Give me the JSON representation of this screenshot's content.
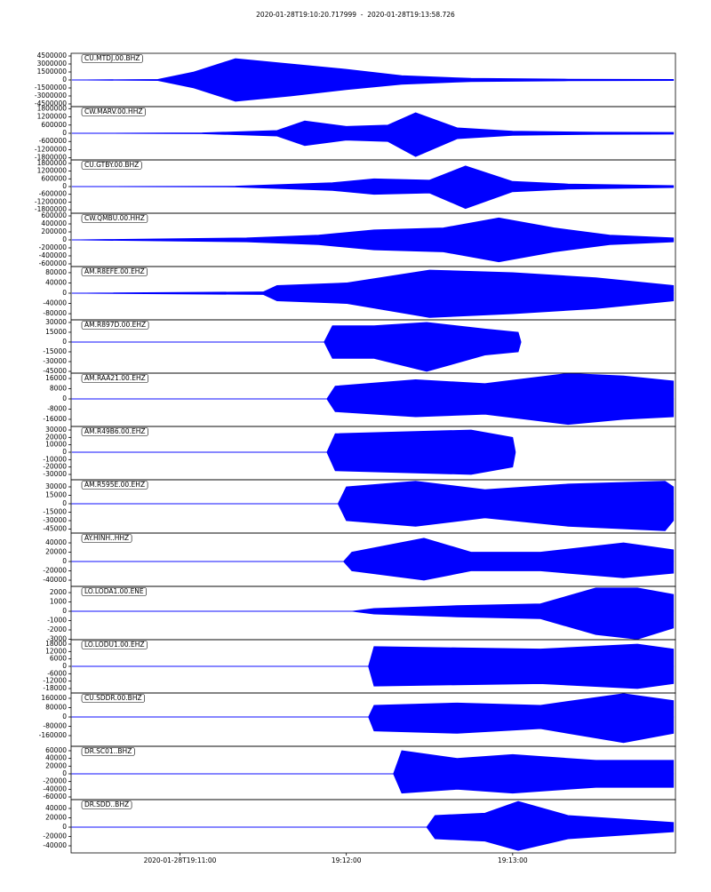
{
  "title": "2020-01-28T19:10:20.717999  -  2020-01-28T19:13:58.726",
  "chart_data": [
    {
      "type": "area",
      "title": "CU.MTDJ.00.BHZ",
      "xlim": [
        "2020-01-28T19:10:20.717999",
        "2020-01-28T19:13:58.726"
      ],
      "ylim": [
        -5000000,
        5000000
      ],
      "yticks": [
        4500000,
        3000000,
        1500000,
        0,
        -1500000,
        -3000000,
        -4500000
      ],
      "x": [
        "2020-01-28T19:10:21",
        "2020-01-28T19:10:52",
        "2020-01-28T19:11:05",
        "2020-01-28T19:11:20",
        "2020-01-28T19:11:40",
        "2020-01-28T19:12:00",
        "2020-01-28T19:12:20",
        "2020-01-28T19:12:45",
        "2020-01-28T19:13:20",
        "2020-01-28T19:13:58"
      ],
      "series": [
        {
          "color": "#0000ff",
          "values": [
            0,
            100000,
            1500000,
            4000000,
            3000000,
            2000000,
            800000,
            300000,
            150000,
            100000
          ]
        },
        {
          "color": "#0000ff",
          "values": [
            0,
            -100000,
            -1500000,
            -4000000,
            -3000000,
            -1800000,
            -800000,
            -300000,
            -150000,
            -100000
          ]
        }
      ]
    },
    {
      "type": "area",
      "title": "CW.MARV.00.HHZ",
      "xlim": [
        "2020-01-28T19:10:20.717999",
        "2020-01-28T19:13:58.726"
      ],
      "ylim": [
        -1950000,
        1950000
      ],
      "yticks": [
        1800000,
        1200000,
        600000,
        0,
        -600000,
        -1200000,
        -1800000
      ],
      "x": [
        "2020-01-28T19:10:21",
        "2020-01-28T19:11:08",
        "2020-01-28T19:11:35",
        "2020-01-28T19:11:45",
        "2020-01-28T19:12:00",
        "2020-01-28T19:12:15",
        "2020-01-28T19:12:25",
        "2020-01-28T19:12:40",
        "2020-01-28T19:13:00",
        "2020-01-28T19:13:30",
        "2020-01-28T19:13:58"
      ],
      "series": [
        {
          "color": "#0000ff",
          "values": [
            0,
            30000,
            200000,
            900000,
            500000,
            600000,
            1500000,
            400000,
            150000,
            80000,
            60000
          ]
        },
        {
          "color": "#0000ff",
          "values": [
            0,
            -30000,
            -200000,
            -900000,
            -500000,
            -600000,
            -1700000,
            -400000,
            -150000,
            -80000,
            -60000
          ]
        }
      ]
    },
    {
      "type": "area",
      "title": "CU.GTBY.00.BHZ",
      "xlim": [
        "2020-01-28T19:10:20.717999",
        "2020-01-28T19:13:58.726"
      ],
      "ylim": [
        -2070000,
        2070000
      ],
      "yticks": [
        1800000,
        1200000,
        600000,
        0,
        -600000,
        -1200000,
        -1800000
      ],
      "x": [
        "2020-01-28T19:10:21",
        "2020-01-28T19:11:20",
        "2020-01-28T19:11:55",
        "2020-01-28T19:12:10",
        "2020-01-28T19:12:30",
        "2020-01-28T19:12:43",
        "2020-01-28T19:13:00",
        "2020-01-28T19:13:20",
        "2020-01-28T19:13:58"
      ],
      "series": [
        {
          "color": "#0000ff",
          "values": [
            0,
            30000,
            300000,
            600000,
            500000,
            1600000,
            400000,
            200000,
            80000
          ]
        },
        {
          "color": "#0000ff",
          "values": [
            0,
            -30000,
            -300000,
            -600000,
            -500000,
            -1700000,
            -400000,
            -200000,
            -80000
          ]
        }
      ]
    },
    {
      "type": "area",
      "title": "CW.QMBU.00.HHZ",
      "xlim": [
        "2020-01-28T19:10:20.717999",
        "2020-01-28T19:13:58.726"
      ],
      "ylim": [
        -667000,
        667000
      ],
      "yticks": [
        600000,
        400000,
        200000,
        0,
        -200000,
        -400000,
        -600000
      ],
      "x": [
        "2020-01-28T19:10:21",
        "2020-01-28T19:11:24",
        "2020-01-28T19:11:50",
        "2020-01-28T19:12:10",
        "2020-01-28T19:12:35",
        "2020-01-28T19:12:55",
        "2020-01-28T19:13:15",
        "2020-01-28T19:13:35",
        "2020-01-28T19:13:58"
      ],
      "series": [
        {
          "color": "#0000ff",
          "values": [
            0,
            50000,
            120000,
            250000,
            300000,
            550000,
            300000,
            120000,
            50000
          ]
        },
        {
          "color": "#0000ff",
          "values": [
            0,
            -50000,
            -120000,
            -250000,
            -300000,
            -550000,
            -300000,
            -120000,
            -50000
          ]
        }
      ]
    },
    {
      "type": "area",
      "title": "AM.R8EFE.00.EHZ",
      "xlim": [
        "2020-01-28T19:10:20.717999",
        "2020-01-28T19:13:58.726"
      ],
      "ylim": [
        -104000,
        104000
      ],
      "yticks": [
        80000,
        40000,
        0,
        -40000,
        -80000
      ],
      "x": [
        "2020-01-28T19:10:21",
        "2020-01-28T19:11:30",
        "2020-01-28T19:11:35",
        "2020-01-28T19:12:00",
        "2020-01-28T19:12:30",
        "2020-01-28T19:13:00",
        "2020-01-28T19:13:30",
        "2020-01-28T19:13:58"
      ],
      "series": [
        {
          "color": "#0000ff",
          "values": [
            0,
            5000,
            30000,
            40000,
            90000,
            80000,
            60000,
            30000
          ]
        },
        {
          "color": "#0000ff",
          "values": [
            0,
            -5000,
            -30000,
            -40000,
            -95000,
            -80000,
            -60000,
            -30000
          ]
        }
      ]
    },
    {
      "type": "area",
      "title": "AM.R897D.00.EHZ",
      "xlim": [
        "2020-01-28T19:10:20.717999",
        "2020-01-28T19:13:58.726"
      ],
      "ylim": [
        -47700,
        34000
      ],
      "yticks": [
        30000,
        15000,
        0,
        -15000,
        -30000,
        -45000
      ],
      "x": [
        "2020-01-28T19:10:21",
        "2020-01-28T19:11:52",
        "2020-01-28T19:11:55",
        "2020-01-28T19:12:10",
        "2020-01-28T19:12:29",
        "2020-01-28T19:12:50",
        "2020-01-28T19:13:02",
        "2020-01-28T19:13:03"
      ],
      "series": [
        {
          "color": "#0000ff",
          "values": [
            0,
            0,
            25000,
            25000,
            30000,
            20000,
            15000,
            0
          ]
        },
        {
          "color": "#0000ff",
          "values": [
            0,
            0,
            -25000,
            -25000,
            -45000,
            -20000,
            -15000,
            0
          ]
        }
      ]
    },
    {
      "type": "area",
      "title": "AM.RAA21.00.EHZ",
      "xlim": [
        "2020-01-28T19:10:20.717999",
        "2020-01-28T19:13:58.726"
      ],
      "ylim": [
        -21600,
        20200
      ],
      "yticks": [
        16000,
        8000,
        0,
        -8000,
        -16000
      ],
      "x": [
        "2020-01-28T19:10:21",
        "2020-01-28T19:11:53",
        "2020-01-28T19:11:56",
        "2020-01-28T19:12:25",
        "2020-01-28T19:12:50",
        "2020-01-28T19:13:20",
        "2020-01-28T19:13:40",
        "2020-01-28T19:13:58"
      ],
      "series": [
        {
          "color": "#0000ff",
          "values": [
            0,
            0,
            10000,
            15000,
            12000,
            20000,
            18000,
            14000
          ]
        },
        {
          "color": "#0000ff",
          "values": [
            0,
            0,
            -10000,
            -14000,
            -12000,
            -20000,
            -16000,
            -14000
          ]
        }
      ]
    },
    {
      "type": "area",
      "title": "AM.R49B6.00.EHZ",
      "xlim": [
        "2020-01-28T19:10:20.717999",
        "2020-01-28T19:13:58.726"
      ],
      "ylim": [
        -37200,
        34800
      ],
      "yticks": [
        30000,
        20000,
        10000,
        0,
        -10000,
        -20000,
        -30000
      ],
      "x": [
        "2020-01-28T19:10:21",
        "2020-01-28T19:11:53",
        "2020-01-28T19:11:56",
        "2020-01-28T19:12:25",
        "2020-01-28T19:12:45",
        "2020-01-28T19:13:00",
        "2020-01-28T19:13:01"
      ],
      "series": [
        {
          "color": "#0000ff",
          "values": [
            0,
            0,
            25000,
            28000,
            30000,
            20000,
            0
          ]
        },
        {
          "color": "#0000ff",
          "values": [
            0,
            0,
            -25000,
            -28000,
            -30000,
            -20000,
            0
          ]
        }
      ]
    },
    {
      "type": "area",
      "title": "AM.R595E.00.EHZ",
      "xlim": [
        "2020-01-28T19:10:20.717999",
        "2020-01-28T19:13:58.726"
      ],
      "ylim": [
        -52100,
        42600
      ],
      "yticks": [
        30000,
        15000,
        0,
        -15000,
        -30000,
        -45000
      ],
      "x": [
        "2020-01-28T19:10:21",
        "2020-01-28T19:11:57",
        "2020-01-28T19:12:00",
        "2020-01-28T19:12:25",
        "2020-01-28T19:12:50",
        "2020-01-28T19:13:20",
        "2020-01-28T19:13:55",
        "2020-01-28T19:13:58"
      ],
      "series": [
        {
          "color": "#0000ff",
          "values": [
            0,
            0,
            30000,
            40000,
            25000,
            35000,
            40000,
            30000
          ]
        },
        {
          "color": "#0000ff",
          "values": [
            0,
            0,
            -30000,
            -40000,
            -25000,
            -40000,
            -48000,
            -30000
          ]
        }
      ]
    },
    {
      "type": "area",
      "title": "AY.HINH..HHZ",
      "xlim": [
        "2020-01-28T19:10:20.717999",
        "2020-01-28T19:13:58.726"
      ],
      "ylim": [
        -53300,
        61000
      ],
      "yticks": [
        40000,
        20000,
        0,
        -20000,
        -40000
      ],
      "x": [
        "2020-01-28T19:10:21",
        "2020-01-28T19:11:59",
        "2020-01-28T19:12:02",
        "2020-01-28T19:12:28",
        "2020-01-28T19:12:45",
        "2020-01-28T19:13:10",
        "2020-01-28T19:13:40",
        "2020-01-28T19:13:58"
      ],
      "series": [
        {
          "color": "#0000ff",
          "values": [
            0,
            0,
            20000,
            50000,
            20000,
            20000,
            40000,
            25000
          ]
        },
        {
          "color": "#0000ff",
          "values": [
            0,
            0,
            -20000,
            -40000,
            -20000,
            -20000,
            -35000,
            -25000
          ]
        }
      ]
    },
    {
      "type": "area",
      "title": "LO.LODA1.00.ENE",
      "xlim": [
        "2020-01-28T19:10:20.717999",
        "2020-01-28T19:13:58.726"
      ],
      "ylim": [
        -3050,
        2670
      ],
      "yticks": [
        2000,
        1000,
        0,
        -1000,
        -2000,
        -3000
      ],
      "x": [
        "2020-01-28T19:10:21",
        "2020-01-28T19:12:02",
        "2020-01-28T19:12:10",
        "2020-01-28T19:12:40",
        "2020-01-28T19:13:10",
        "2020-01-28T19:13:30",
        "2020-01-28T19:13:45",
        "2020-01-28T19:13:58"
      ],
      "series": [
        {
          "color": "#0000ff",
          "values": [
            0,
            0,
            300,
            600,
            800,
            2500,
            2500,
            1800
          ]
        },
        {
          "color": "#0000ff",
          "values": [
            0,
            0,
            -300,
            -600,
            -800,
            -2500,
            -3000,
            -1800
          ]
        }
      ]
    },
    {
      "type": "area",
      "title": "LO.LODU1.00.EHZ",
      "xlim": [
        "2020-01-28T19:10:20.717999",
        "2020-01-28T19:13:58.726"
      ],
      "ylim": [
        -21600,
        21600
      ],
      "yticks": [
        18000,
        12000,
        6000,
        0,
        -6000,
        -12000,
        -18000
      ],
      "x": [
        "2020-01-28T19:10:21",
        "2020-01-28T19:12:08",
        "2020-01-28T19:12:10",
        "2020-01-28T19:12:40",
        "2020-01-28T19:13:10",
        "2020-01-28T19:13:45",
        "2020-01-28T19:13:58"
      ],
      "series": [
        {
          "color": "#0000ff",
          "values": [
            0,
            0,
            16000,
            15000,
            14000,
            18000,
            14000
          ]
        },
        {
          "color": "#0000ff",
          "values": [
            0,
            0,
            -16000,
            -15000,
            -14000,
            -18000,
            -14000
          ]
        }
      ]
    },
    {
      "type": "area",
      "title": "CU.SDDR.00.BHZ",
      "xlim": [
        "2020-01-28T19:10:20.717999",
        "2020-01-28T19:13:58.726"
      ],
      "ylim": [
        -251400,
        205700
      ],
      "yticks": [
        160000,
        80000,
        0,
        -80000,
        -160000
      ],
      "x": [
        "2020-01-28T19:10:21",
        "2020-01-28T19:12:08",
        "2020-01-28T19:12:10",
        "2020-01-28T19:12:40",
        "2020-01-28T19:13:10",
        "2020-01-28T19:13:40",
        "2020-01-28T19:13:58"
      ],
      "series": [
        {
          "color": "#0000ff",
          "values": [
            0,
            0,
            100000,
            120000,
            100000,
            200000,
            140000
          ]
        },
        {
          "color": "#0000ff",
          "values": [
            0,
            0,
            -120000,
            -140000,
            -100000,
            -220000,
            -140000
          ]
        }
      ]
    },
    {
      "type": "area",
      "title": "DR.SC01..BHZ",
      "xlim": [
        "2020-01-28T19:10:20.717999",
        "2020-01-28T19:13:58.726"
      ],
      "ylim": [
        -66900,
        71500
      ],
      "yticks": [
        60000,
        40000,
        20000,
        0,
        -20000,
        -40000,
        -60000
      ],
      "x": [
        "2020-01-28T19:10:21",
        "2020-01-28T19:12:17",
        "2020-01-28T19:12:20",
        "2020-01-28T19:12:40",
        "2020-01-28T19:13:00",
        "2020-01-28T19:13:30",
        "2020-01-28T19:13:58"
      ],
      "series": [
        {
          "color": "#0000ff",
          "values": [
            0,
            0,
            60000,
            40000,
            50000,
            35000,
            35000
          ]
        },
        {
          "color": "#0000ff",
          "values": [
            0,
            0,
            -50000,
            -40000,
            -50000,
            -35000,
            -35000
          ]
        }
      ]
    },
    {
      "type": "area",
      "title": "DR.SDD..BHZ",
      "xlim": [
        "2020-01-28T19:10:20.717999",
        "2020-01-28T19:13:58.726"
      ],
      "ylim": [
        -55200,
        59000
      ],
      "yticks": [
        40000,
        20000,
        0,
        -20000,
        -40000
      ],
      "x": [
        "2020-01-28T19:10:21",
        "2020-01-28T19:12:29",
        "2020-01-28T19:12:32",
        "2020-01-28T19:12:50",
        "2020-01-28T19:13:02",
        "2020-01-28T19:13:20",
        "2020-01-28T19:13:58"
      ],
      "series": [
        {
          "color": "#0000ff",
          "values": [
            0,
            0,
            25000,
            30000,
            55000,
            25000,
            10000
          ]
        },
        {
          "color": "#0000ff",
          "values": [
            0,
            0,
            -25000,
            -30000,
            -50000,
            -25000,
            -10000
          ]
        }
      ],
      "xticks": [
        "2020-01-28T19:11:00",
        {
          "value": "2020-01-28T19:12:00",
          "label": "19:12:00"
        },
        {
          "value": "2020-01-28T19:13:00",
          "label": "19:13:00"
        }
      ]
    }
  ]
}
